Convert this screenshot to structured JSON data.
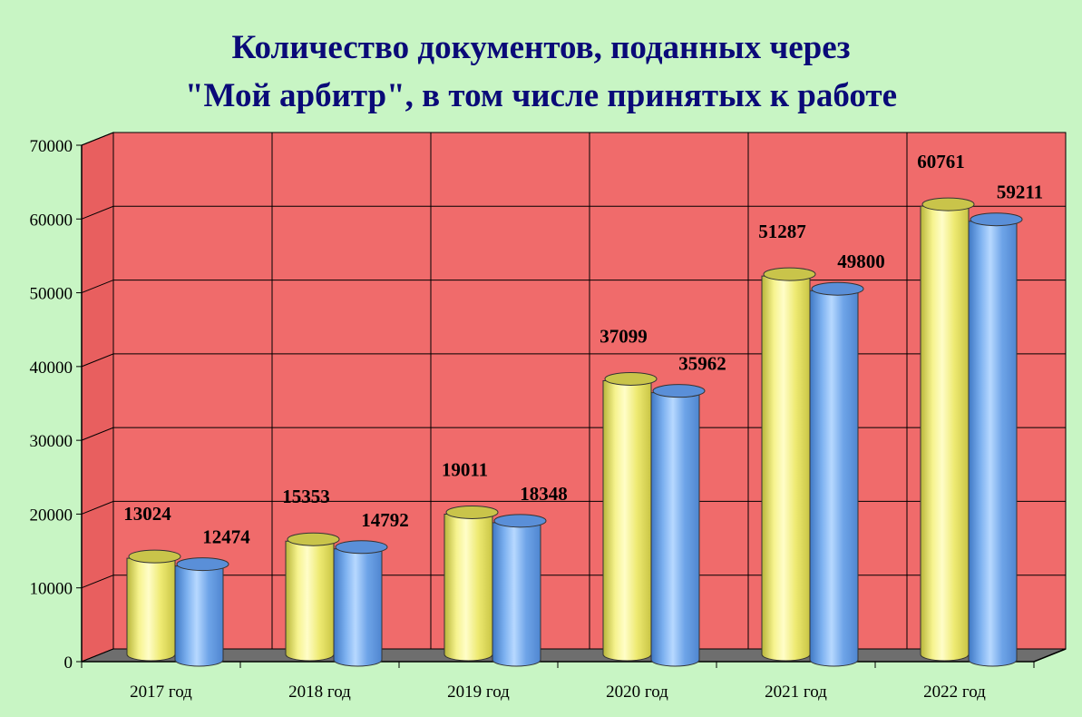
{
  "chart_data": {
    "type": "bar",
    "title_line1": "Количество документов, поданных через",
    "title_line2": "\"Мой арбитр\", в том числе принятых к работе",
    "categories": [
      "2017 год",
      "2018 год",
      "2019 год",
      "2020 год",
      "2021 год",
      "2022 год"
    ],
    "series": [
      {
        "values": [
          13024,
          15353,
          19011,
          37099,
          51287,
          60761
        ],
        "color": "#f3f07a"
      },
      {
        "values": [
          12474,
          14792,
          18348,
          35962,
          49800,
          59211
        ],
        "color": "#7fb2ef"
      }
    ],
    "ylim": [
      0,
      70000
    ],
    "yticks": [
      "0",
      "10000",
      "20000",
      "30000",
      "40000",
      "50000",
      "60000",
      "70000"
    ],
    "grid": true,
    "wall_color": "#f06b6b",
    "floor_color": "#6e6e6e"
  }
}
